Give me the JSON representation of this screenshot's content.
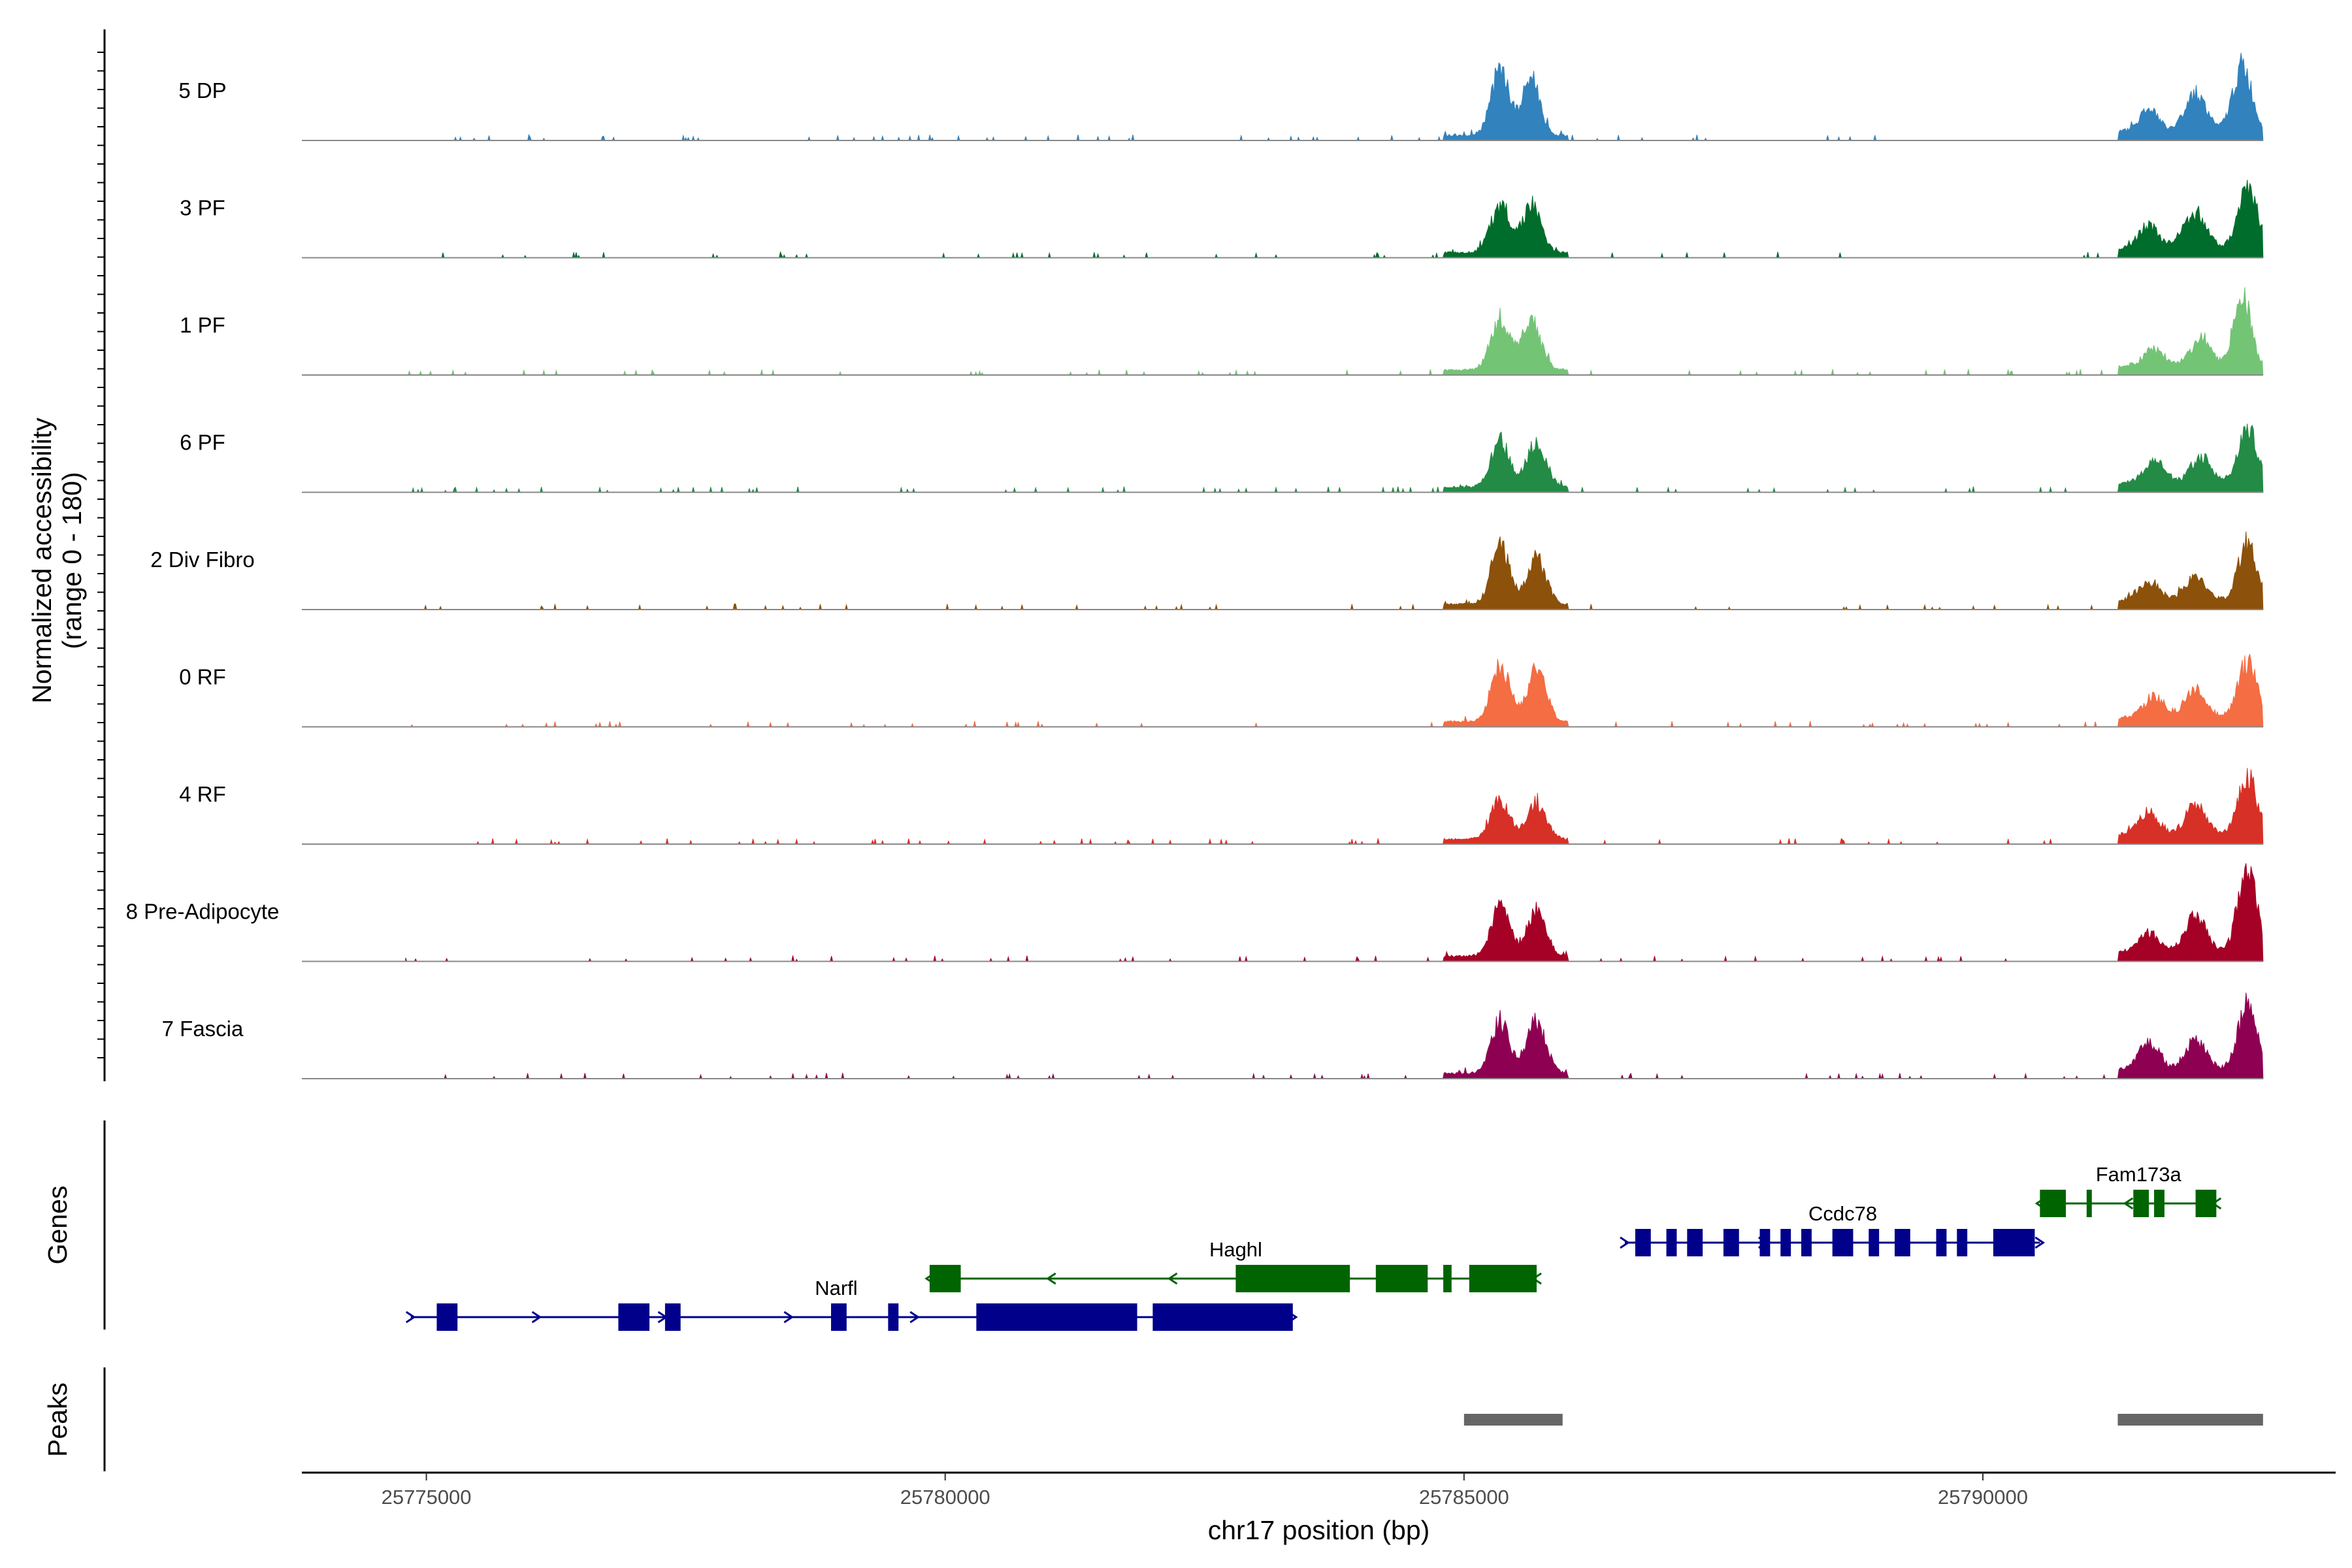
{
  "chart_data": {
    "type": "area",
    "title": "",
    "xlabel": "chr17 position (bp)",
    "ylabel": "Normalized accessibility",
    "ylabel2": "(range 0 - 180)",
    "xlim": [
      25773800,
      25793400
    ],
    "ylim": [
      0,
      180
    ],
    "xticks": [
      25775000,
      25780000,
      25785000,
      25790000
    ],
    "xtick_labels": [
      "25775000",
      "25780000",
      "25785000",
      "25790000"
    ],
    "panel_labels": {
      "genes": "Genes",
      "peaks": "Peaks"
    },
    "tracks": [
      {
        "name": "5 DP",
        "color": "#3182bd",
        "peaks": [
          [
            25785350,
            90,
            100
          ],
          [
            25785650,
            80,
            90
          ],
          [
            25791600,
            90,
            35
          ],
          [
            25792050,
            100,
            60
          ],
          [
            25792500,
            90,
            100
          ]
        ]
      },
      {
        "name": "3 PF",
        "color": "#006d2c",
        "peaks": [
          [
            25785350,
            90,
            75
          ],
          [
            25785650,
            90,
            72
          ],
          [
            25791600,
            100,
            35
          ],
          [
            25792050,
            110,
            55
          ],
          [
            25792550,
            90,
            100
          ]
        ]
      },
      {
        "name": "1 PF",
        "color": "#74c476",
        "peaks": [
          [
            25785350,
            90,
            80
          ],
          [
            25785650,
            90,
            75
          ],
          [
            25791650,
            100,
            25
          ],
          [
            25792100,
            100,
            40
          ],
          [
            25792500,
            80,
            110
          ]
        ]
      },
      {
        "name": "6 PF",
        "color": "#238b45",
        "peaks": [
          [
            25785350,
            90,
            70
          ],
          [
            25785700,
            90,
            70
          ],
          [
            25791650,
            100,
            35
          ],
          [
            25792100,
            100,
            40
          ],
          [
            25792550,
            90,
            85
          ]
        ]
      },
      {
        "name": "2 Div Fibro",
        "color": "#8c510a",
        "peaks": [
          [
            25785350,
            90,
            90
          ],
          [
            25785700,
            90,
            70
          ],
          [
            25791600,
            100,
            30
          ],
          [
            25792050,
            100,
            35
          ],
          [
            25792550,
            90,
            85
          ]
        ]
      },
      {
        "name": "0 RF",
        "color": "#f46d43",
        "peaks": [
          [
            25785350,
            90,
            85
          ],
          [
            25785700,
            90,
            80
          ],
          [
            25791650,
            100,
            33
          ],
          [
            25792050,
            100,
            45
          ],
          [
            25792550,
            90,
            85
          ]
        ]
      },
      {
        "name": "4 RF",
        "color": "#d73027",
        "peaks": [
          [
            25785350,
            90,
            60
          ],
          [
            25785700,
            90,
            55
          ],
          [
            25791600,
            100,
            35
          ],
          [
            25792050,
            100,
            45
          ],
          [
            25792550,
            90,
            90
          ]
        ]
      },
      {
        "name": "8 Pre-Adipocyte",
        "color": "#a50026",
        "peaks": [
          [
            25785350,
            90,
            75
          ],
          [
            25785700,
            90,
            70
          ],
          [
            25791600,
            100,
            30
          ],
          [
            25792050,
            100,
            55
          ],
          [
            25792550,
            90,
            125
          ]
        ]
      },
      {
        "name": "7 Fascia",
        "color": "#8e0152",
        "peaks": [
          [
            25785350,
            90,
            80
          ],
          [
            25785700,
            90,
            80
          ],
          [
            25791600,
            100,
            40
          ],
          [
            25792050,
            100,
            45
          ],
          [
            25792550,
            90,
            100
          ]
        ]
      }
    ],
    "genes": [
      {
        "name": "Narfl",
        "strand": "+",
        "color": "#00008b",
        "start": 25774850,
        "end": 25783350,
        "row": 3,
        "label_pos": 25778950,
        "exons": [
          [
            25775100,
            25775300
          ],
          [
            25776850,
            25777150
          ],
          [
            25777300,
            25777450
          ],
          [
            25778900,
            25779050
          ],
          [
            25779450,
            25779550
          ],
          [
            25780300,
            25781850
          ],
          [
            25782000,
            25783350
          ]
        ]
      },
      {
        "name": "Haghl",
        "strand": "-",
        "color": "#006400",
        "start": 25779850,
        "end": 25785700,
        "row": 2,
        "label_pos": 25782800,
        "exons": [
          [
            25779850,
            25780150
          ],
          [
            25782800,
            25783900
          ],
          [
            25784150,
            25784650
          ],
          [
            25784800,
            25784880
          ],
          [
            25785050,
            25785700
          ]
        ]
      },
      {
        "name": "Ccdc78",
        "strand": "+",
        "color": "#00008b",
        "start": 25786550,
        "end": 25790550,
        "row": 1,
        "label_pos": 25788650,
        "exons": [
          [
            25786650,
            25786800
          ],
          [
            25786950,
            25787050
          ],
          [
            25787150,
            25787300
          ],
          [
            25787500,
            25787650
          ],
          [
            25787850,
            25787950
          ],
          [
            25788050,
            25788150
          ],
          [
            25788250,
            25788350
          ],
          [
            25788550,
            25788750
          ],
          [
            25788900,
            25789000
          ],
          [
            25789150,
            25789300
          ],
          [
            25789550,
            25789650
          ],
          [
            25789750,
            25789850
          ],
          [
            25790100,
            25790500
          ]
        ]
      },
      {
        "name": "Fam173a",
        "strand": "-",
        "color": "#006400",
        "start": 25790550,
        "end": 25792250,
        "row": 0,
        "label_pos": 25791500,
        "exons": [
          [
            25790550,
            25790800
          ],
          [
            25791000,
            25791050
          ],
          [
            25791450,
            25791600
          ],
          [
            25791650,
            25791750
          ],
          [
            25792050,
            25792250
          ]
        ]
      }
    ],
    "peak_regions": [
      [
        25785000,
        25785950
      ],
      [
        25791300,
        25792700
      ]
    ],
    "peak_region_color": "#666666"
  }
}
